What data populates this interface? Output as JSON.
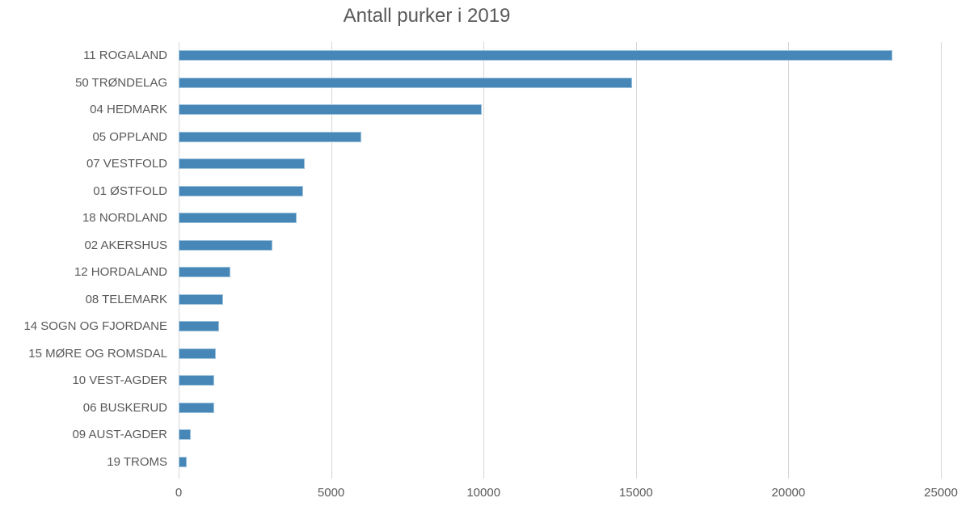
{
  "chart_data": {
    "type": "bar",
    "orientation": "horizontal",
    "title": "Antall purker i 2019",
    "categories": [
      "11 ROGALAND",
      "50 TRØNDELAG",
      "04 HEDMARK",
      "05 OPPLAND",
      "07 VESTFOLD",
      "01 ØSTFOLD",
      "18 NORDLAND",
      "02 AKERSHUS",
      "12 HORDALAND",
      "08 TELEMARK",
      "14 SOGN OG FJORDANE",
      "15 MØRE OG ROMSDAL",
      "10 VEST-AGDER",
      "06 BUSKERUD",
      "09 AUST-AGDER",
      "19 TROMS"
    ],
    "values": [
      23400,
      14880,
      9950,
      6000,
      4140,
      4090,
      3860,
      3080,
      1690,
      1470,
      1330,
      1220,
      1170,
      1160,
      400,
      270
    ],
    "xlim": [
      0,
      25000
    ],
    "x_ticks": [
      0,
      5000,
      10000,
      15000,
      20000,
      25000
    ],
    "x_tick_labels": [
      "0",
      "5000",
      "10000",
      "15000",
      "20000",
      "25000"
    ],
    "grid": "vertical",
    "legend_position": "none",
    "bar_color": "#4787b7",
    "bar_border_color": "#9fc3dd",
    "gridline_color": "#d6d6d6",
    "text_color": "#595959",
    "background_color": "#ffffff"
  }
}
